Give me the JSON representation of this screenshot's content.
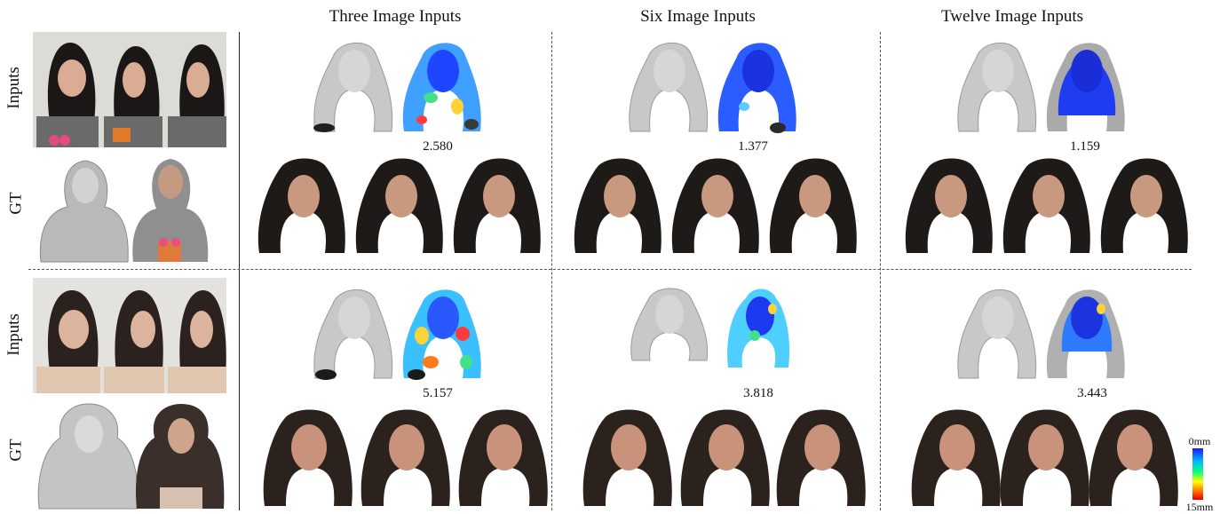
{
  "columns": [
    "Three Image Inputs",
    "Six Image Inputs",
    "Twelve Image Inputs"
  ],
  "row_labels": {
    "inputs": "Inputs",
    "gt": "GT"
  },
  "subjects": [
    {
      "metrics": [
        "2.580",
        "1.377",
        "1.159"
      ]
    },
    {
      "metrics": [
        "5.157",
        "3.818",
        "3.443"
      ]
    }
  ],
  "colorbar": {
    "min": "0mm",
    "max": "15mm"
  },
  "colors": {
    "mesh": "#c8c8c8",
    "hair": "#1d1a18",
    "skin": "#c9997f",
    "error_low": "#1a3cff",
    "error_high": "#e62020"
  }
}
